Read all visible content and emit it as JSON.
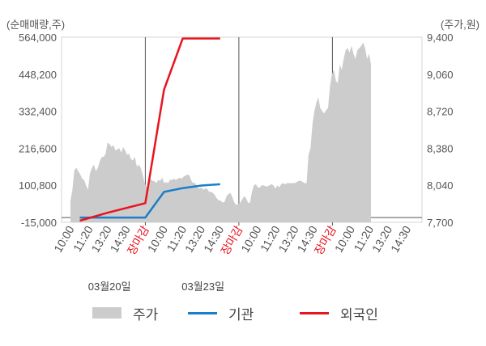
{
  "chart_data": {
    "type": "line",
    "left_axis_unit": "(순매매량,주)",
    "right_axis_unit": "(주가,원)",
    "left_ticks": [
      564000,
      448200,
      332400,
      216600,
      100800,
      -15000
    ],
    "left_tick_labels": [
      "564,000",
      "448,200",
      "332,400",
      "216,600",
      "100,800",
      "-15,000"
    ],
    "right_ticks": [
      9400,
      9060,
      8720,
      8380,
      8040,
      7700
    ],
    "right_tick_labels": [
      "9,400",
      "9,060",
      "8,720",
      "8,380",
      "8,040",
      "7,700"
    ],
    "left_ylim": [
      -15000,
      564000
    ],
    "right_ylim": [
      7700,
      9400
    ],
    "x_ticks": [
      {
        "label": "10:00",
        "close": false
      },
      {
        "label": "11:20",
        "close": false
      },
      {
        "label": "13:20",
        "close": false
      },
      {
        "label": "14:30",
        "close": false
      },
      {
        "label": "장마감",
        "close": true
      },
      {
        "label": "10:00",
        "close": false
      },
      {
        "label": "11:20",
        "close": false
      },
      {
        "label": "13:20",
        "close": false
      },
      {
        "label": "14:30",
        "close": false
      },
      {
        "label": "장마감",
        "close": true
      },
      {
        "label": "10:00",
        "close": false
      },
      {
        "label": "11:20",
        "close": false
      },
      {
        "label": "13:20",
        "close": false
      },
      {
        "label": "14:30",
        "close": false
      },
      {
        "label": "장마감",
        "close": true
      },
      {
        "label": "10:00",
        "close": false
      },
      {
        "label": "11:20",
        "close": false
      },
      {
        "label": "13:20",
        "close": false
      },
      {
        "label": "14:30",
        "close": false
      }
    ],
    "date_labels": [
      {
        "label": "03월20일",
        "tick_index": 2
      },
      {
        "label": "03월23일",
        "tick_index": 7
      }
    ],
    "session_boundaries": [
      4,
      9,
      14
    ],
    "grid": false,
    "legend_position": "bottom",
    "series": [
      {
        "name": "주가",
        "kind": "area",
        "axis": "right",
        "color": "#cccccc",
        "values": [
          7900,
          8000,
          8180,
          8200,
          8170,
          8140,
          8100,
          8090,
          8040,
          8000,
          8150,
          8200,
          8230,
          8170,
          8200,
          8260,
          8300,
          8300,
          8330,
          8430,
          8420,
          8390,
          8410,
          8360,
          8370,
          8380,
          8340,
          8390,
          8360,
          8320,
          8330,
          8280,
          8270,
          8300,
          8210,
          8230,
          8200,
          8140,
          8060,
          8020,
          8060,
          8100,
          8080,
          8080,
          8060,
          8090,
          8080,
          8110,
          8060,
          8070,
          8060,
          8090,
          8090,
          8100,
          8090,
          8100,
          8110,
          8100,
          8120,
          8130,
          8140,
          8130,
          8080,
          8060,
          8060,
          8020,
          8010,
          8020,
          8000,
          8010,
          8010,
          7980,
          7980,
          7970,
          7950,
          7920,
          7900,
          7900,
          7880,
          7890,
          7940,
          7960,
          7970,
          7930,
          7880,
          7860,
          7870,
          7880,
          7910,
          7940,
          7920,
          7880,
          7880,
          7980,
          8040,
          8050,
          8020,
          8020,
          8040,
          8040,
          8030,
          8030,
          8040,
          8050,
          8040,
          8010,
          8040,
          8020,
          8050,
          8060,
          8050,
          8060,
          8060,
          8060,
          8060,
          8060,
          8070,
          8080,
          8080,
          8070,
          8060,
          8060,
          8320,
          8380,
          8600,
          8720,
          8800,
          8850,
          8750,
          8720,
          8700,
          8730,
          8750,
          8950,
          9060,
          9100,
          9000,
          8980,
          9150,
          9100,
          9200,
          9280,
          9300,
          9260,
          9320,
          9250,
          9200,
          9280,
          9300,
          9320,
          9350,
          9300,
          9200,
          9250,
          9150
        ]
      },
      {
        "name": "기관",
        "kind": "line",
        "axis": "left",
        "color": "#1a7ec8",
        "points": [
          [
            0.5,
            0
          ],
          [
            4.0,
            0
          ],
          [
            5.0,
            80000
          ],
          [
            6.0,
            92000
          ],
          [
            7.0,
            100000
          ],
          [
            8.0,
            104000
          ]
        ]
      },
      {
        "name": "외국인",
        "kind": "line",
        "axis": "left",
        "color": "#e8141e",
        "points": [
          [
            0.5,
            -10000
          ],
          [
            2.0,
            15000
          ],
          [
            4.0,
            45000
          ],
          [
            5.0,
            400000
          ],
          [
            6.0,
            560000
          ],
          [
            7.0,
            560000
          ],
          [
            8.0,
            560000
          ]
        ]
      }
    ]
  },
  "legend": [
    {
      "label": "주가",
      "kind": "area",
      "color": "#cccccc"
    },
    {
      "label": "기관",
      "kind": "line",
      "color": "#1a7ec8"
    },
    {
      "label": "외국인",
      "kind": "line",
      "color": "#e8141e"
    }
  ]
}
